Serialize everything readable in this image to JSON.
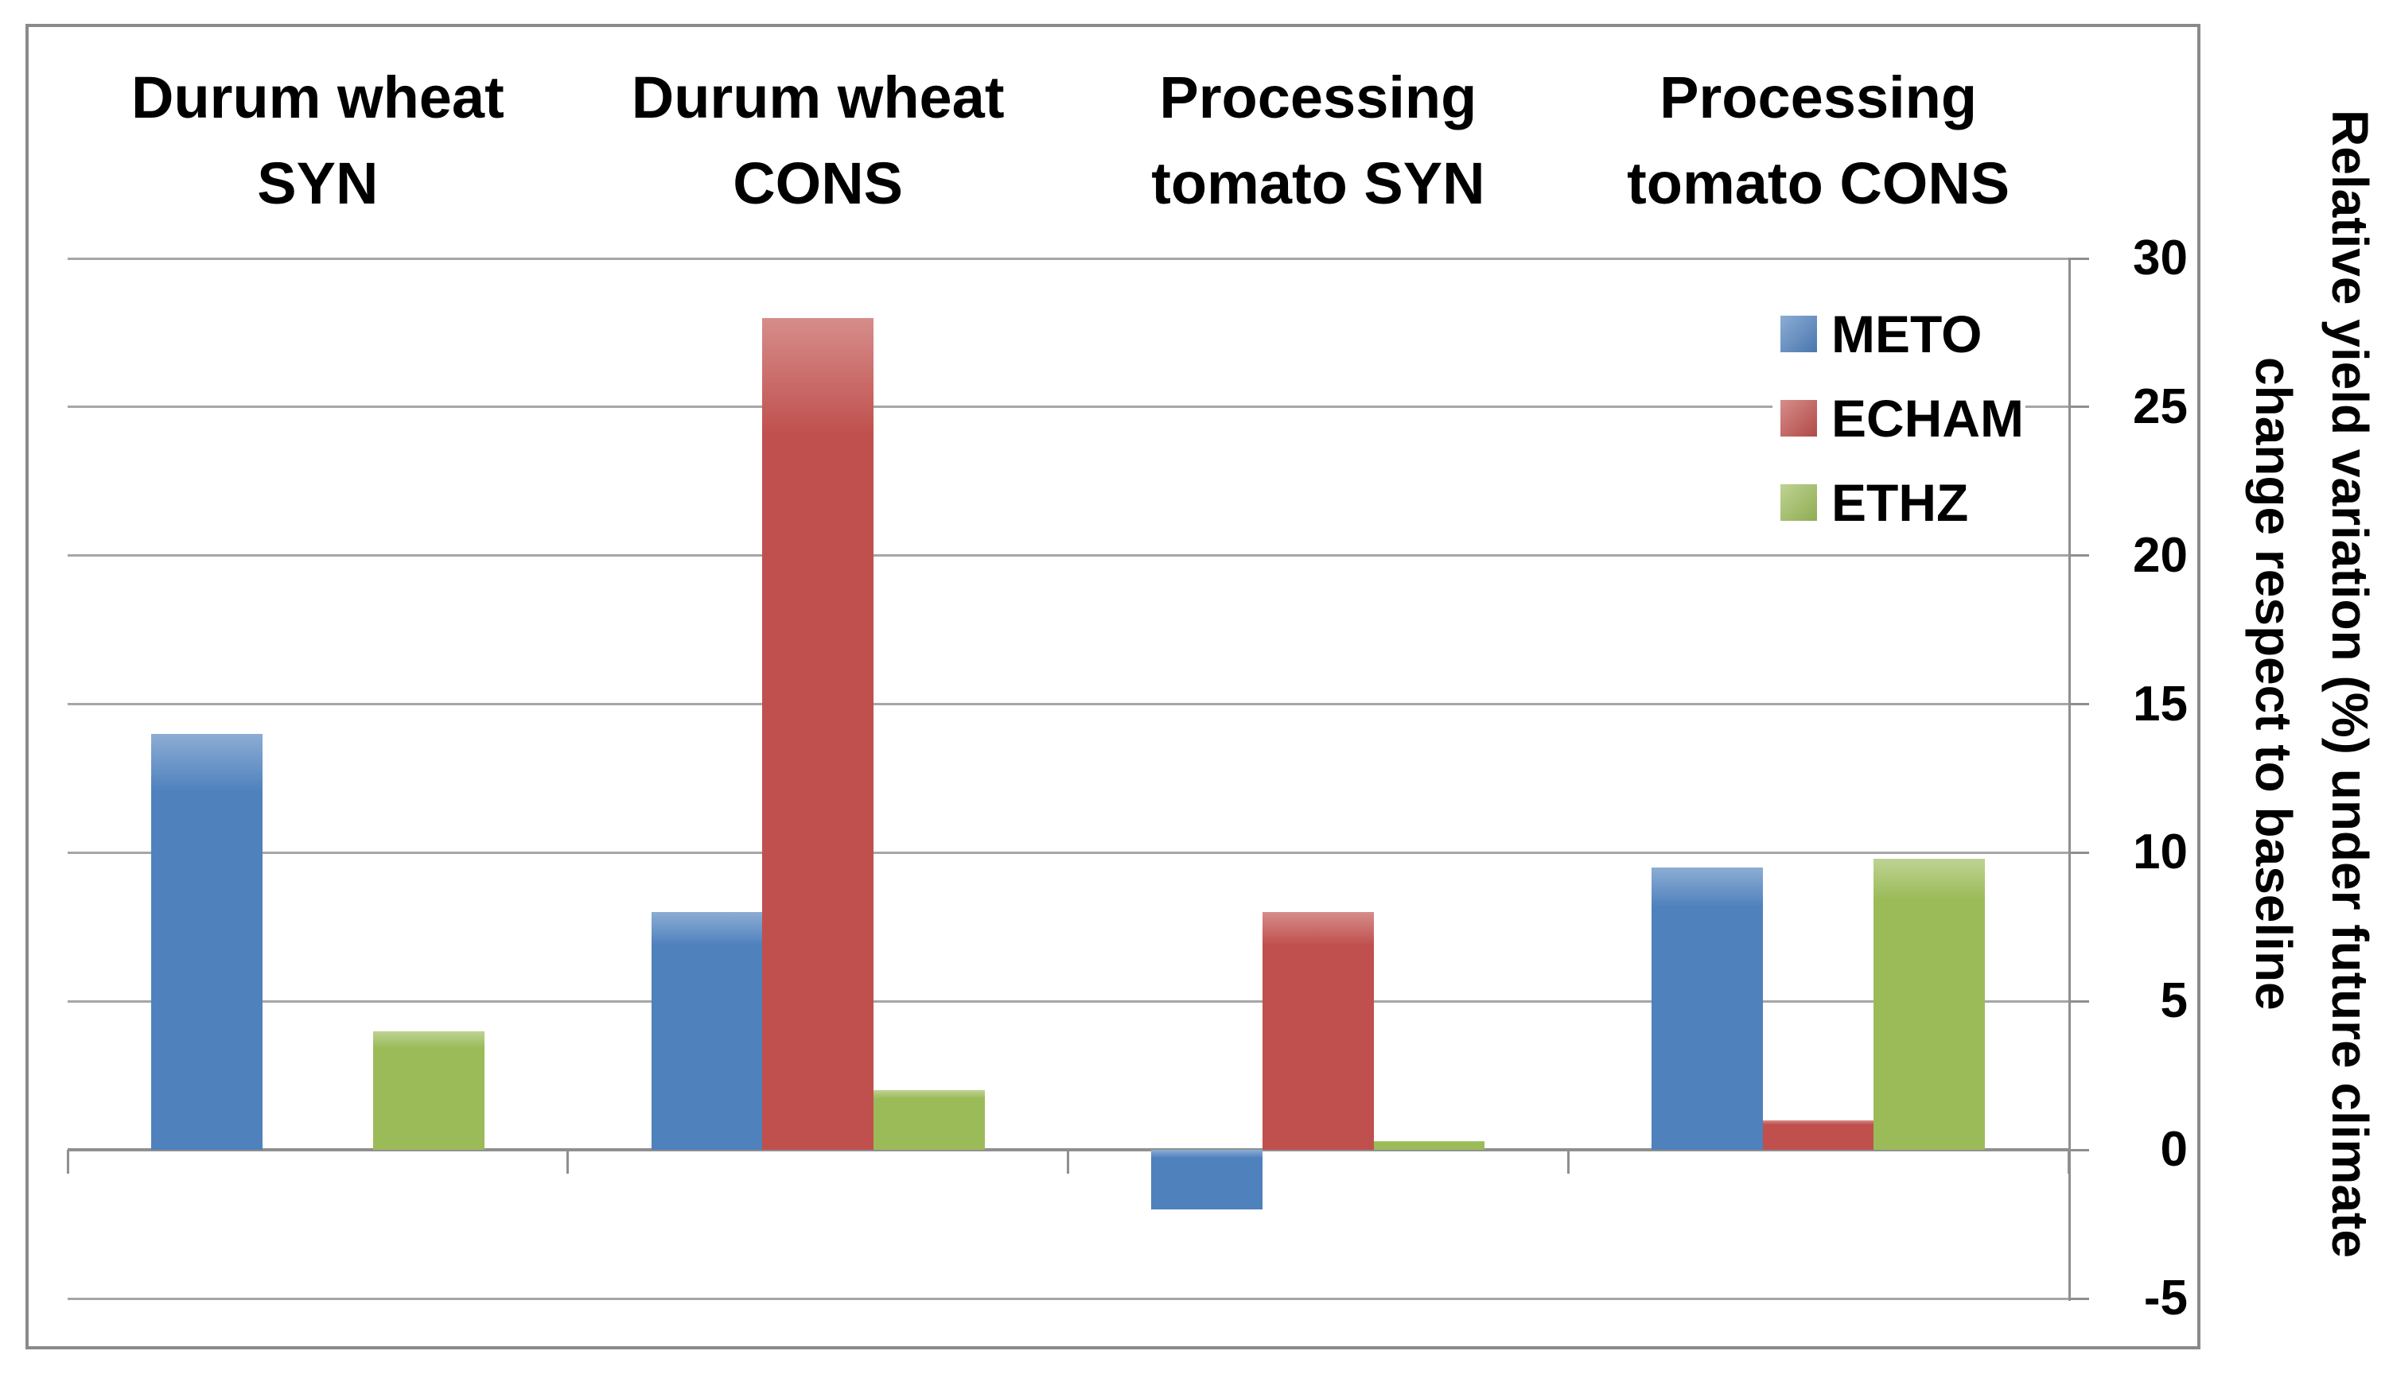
{
  "chart_data": {
    "type": "bar",
    "categories": [
      "Durum wheat SYN",
      "Durum wheat CONS",
      "Processing tomato SYN",
      "Processing tomato CONS"
    ],
    "series": [
      {
        "name": "METO",
        "color": "#4F81BD",
        "values": [
          14,
          8,
          -2,
          9.5
        ]
      },
      {
        "name": "ECHAM",
        "color": "#C0504D",
        "values": [
          0,
          28,
          8,
          1
        ]
      },
      {
        "name": "ETHZ",
        "color": "#9BBB59",
        "values": [
          4,
          2,
          0.3,
          9.8
        ]
      }
    ],
    "title": "",
    "xlabel": "",
    "ylabel": "Relative yield variation (%) under future climate change respect to baseline",
    "ylabel_line1": "Relative yield variation (%) under future climate",
    "ylabel_line2": "change respect to baseline",
    "ylim": [
      -5,
      30
    ],
    "ytick_step": 5,
    "yticks": [
      30,
      25,
      20,
      15,
      10,
      5,
      0,
      -5
    ],
    "grid": true,
    "gridline_color": "#A6A6A6",
    "axis_color": "#8F8F8F",
    "legend_position": "inside-top-right",
    "legend_items": [
      "METO",
      "ECHAM",
      "ETHZ"
    ]
  }
}
